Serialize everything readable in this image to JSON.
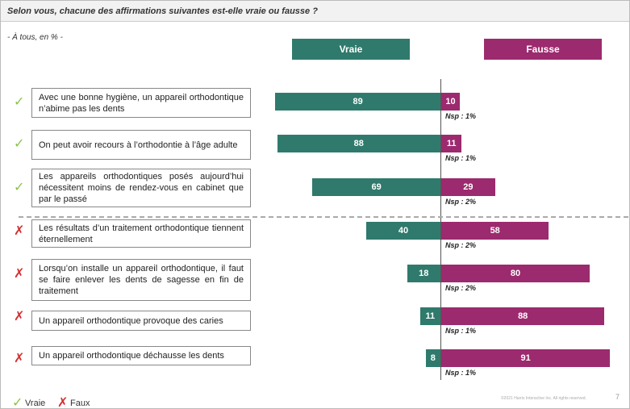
{
  "chart_data": {
    "type": "diverging-bar",
    "title": "Selon vous, chacune des affirmations suivantes est-elle vraie ou fausse ?",
    "subtitle": "- À tous, en % -",
    "categories": [
      "Avec une bonne hygiène, un appareil orthodontique n’abime pas les dents",
      "On peut avoir recours à l’orthodontie à l’âge adulte",
      "Les appareils orthodontiques posés aujourd’hui nécessitent moins de rendez-vous en cabinet que par le passé",
      "Les résultats d’un traitement orthodontique tiennent éternellement",
      "Lorsqu’on installe un appareil orthodontique, il faut se faire enlever les dents de sagesse en fin de traitement",
      "Un appareil orthodontique provoque des caries",
      "Un appareil orthodontique déchausse les dents"
    ],
    "correct": [
      true,
      true,
      true,
      false,
      false,
      false,
      false
    ],
    "series": [
      {
        "name": "Vraie",
        "color": "#2f7a6c",
        "values": [
          89,
          88,
          69,
          40,
          18,
          11,
          8
        ]
      },
      {
        "name": "Fausse",
        "color": "#9c2a6e",
        "values": [
          10,
          11,
          29,
          58,
          80,
          88,
          91
        ]
      }
    ],
    "nsp": {
      "values": [
        1,
        1,
        2,
        2,
        2,
        1,
        1
      ],
      "value_labels": [
        "Nsp : 1%",
        "Nsp : 1%",
        "Nsp : 2%",
        "Nsp : 2%",
        "Nsp : 2%",
        "Nsp : 1%",
        "Nsp : 1%"
      ]
    },
    "xlim": [
      0,
      100
    ],
    "legend": [
      "Vraie",
      "Faux"
    ],
    "footer": "©2021 Harris Interactive Inc. All rights reserved.",
    "page_number": "7"
  }
}
